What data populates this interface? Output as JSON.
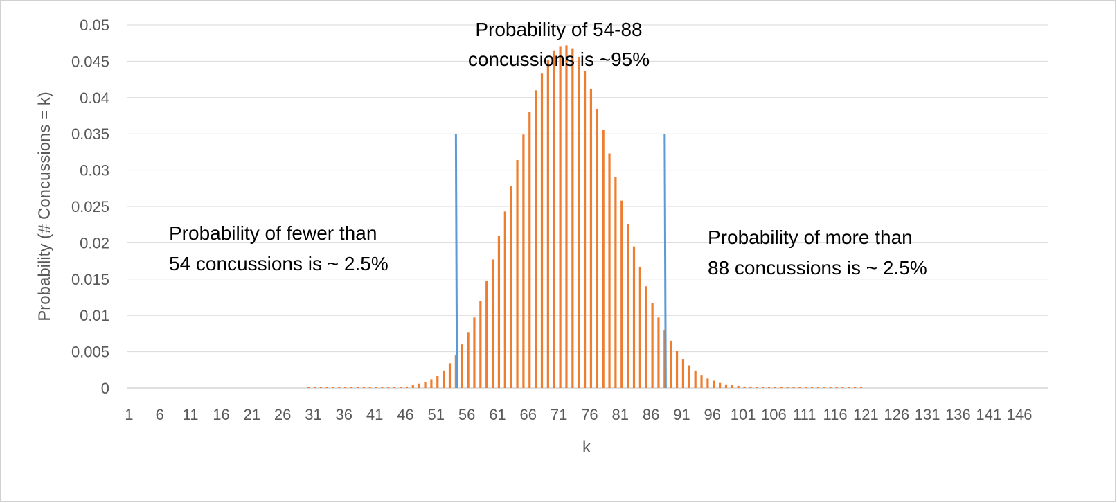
{
  "chart_data": {
    "type": "bar",
    "title": "",
    "xlabel": "k",
    "ylabel": "Probability (# Concussions = k)",
    "ylim": [
      0,
      0.05
    ],
    "y_ticks": [
      "0",
      "0.005",
      "0.01",
      "0.015",
      "0.02",
      "0.025",
      "0.03",
      "0.035",
      "0.04",
      "0.045",
      "0.05"
    ],
    "x_range": [
      1,
      150
    ],
    "x_ticks": [
      "1",
      "6",
      "11",
      "16",
      "21",
      "26",
      "31",
      "36",
      "41",
      "46",
      "51",
      "56",
      "61",
      "66",
      "71",
      "76",
      "81",
      "86",
      "91",
      "96",
      "101",
      "106",
      "111",
      "116",
      "121",
      "126",
      "131",
      "136",
      "141",
      "146"
    ],
    "grid": true,
    "legend": "none",
    "series": [
      {
        "color": "#ED7D31",
        "start_k": 30,
        "values": [
          0.0001,
          0.0001,
          0.0001,
          0.0001,
          0.0001,
          0.0001,
          0.0001,
          0.0001,
          0.0001,
          0.0001,
          0.0001,
          0.0001,
          0.0001,
          0.0001,
          0.0001,
          0.0001,
          0.0002,
          0.0004,
          0.0006,
          0.0008,
          0.0012,
          0.0017,
          0.0024,
          0.0034,
          0.0045,
          0.006,
          0.0077,
          0.0097,
          0.012,
          0.0147,
          0.0177,
          0.0209,
          0.0243,
          0.0278,
          0.0314,
          0.0349,
          0.038,
          0.041,
          0.0433,
          0.0452,
          0.0465,
          0.047,
          0.0472,
          0.0467,
          0.0456,
          0.0437,
          0.0412,
          0.0384,
          0.0355,
          0.0323,
          0.0291,
          0.0258,
          0.0226,
          0.0195,
          0.0167,
          0.014,
          0.0117,
          0.0097,
          0.008,
          0.0065,
          0.0051,
          0.004,
          0.0031,
          0.0024,
          0.0018,
          0.0013,
          0.001,
          0.0007,
          0.0005,
          0.0004,
          0.0003,
          0.0002,
          0.0002,
          0.0001,
          0.0001,
          0.0001,
          0.0001,
          0.0001,
          0.0001,
          0.0001,
          0.0001,
          0.0001,
          0.0001,
          0.0001,
          0.0001,
          0.0001,
          0.0001,
          0.0001,
          0.0001,
          0.0001,
          0.0001
        ]
      }
    ],
    "markers": [
      {
        "x": 54,
        "y": 0.035,
        "color": "#5B9BD5"
      },
      {
        "x": 88,
        "y": 0.035,
        "color": "#5B9BD5"
      }
    ],
    "annotations": [
      {
        "lines": [
          "Probability of 54-88",
          "concussions is ~95%"
        ]
      },
      {
        "lines": [
          "Probability of fewer than",
          "54 concussions is ~ 2.5%"
        ]
      },
      {
        "lines": [
          "Probability of more than",
          "88 concussions is ~ 2.5%"
        ]
      }
    ]
  }
}
